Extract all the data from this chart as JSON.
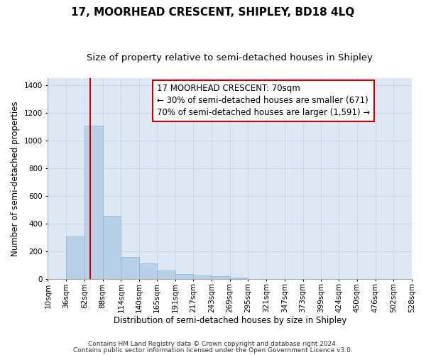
{
  "title": "17, MOORHEAD CRESCENT, SHIPLEY, BD18 4LQ",
  "subtitle": "Size of property relative to semi-detached houses in Shipley",
  "xlabel": "Distribution of semi-detached houses by size in Shipley",
  "ylabel": "Number of semi-detached properties",
  "footnote1": "Contains HM Land Registry data © Crown copyright and database right 2024.",
  "footnote2": "Contains public sector information licensed under the Open Government Licence v3.0.",
  "annotation_line1": "17 MOORHEAD CRESCENT: 70sqm",
  "annotation_line2": "← 30% of semi-detached houses are smaller (671)",
  "annotation_line3": "70% of semi-detached houses are larger (1,591) →",
  "bar_values": [
    0,
    305,
    1105,
    455,
    155,
    110,
    60,
    35,
    25,
    20,
    10,
    0,
    0,
    0,
    0,
    0,
    0,
    0,
    0,
    0
  ],
  "bin_edges": [
    10,
    36,
    62,
    88,
    114,
    140,
    165,
    191,
    217,
    243,
    269,
    295,
    321,
    347,
    373,
    399,
    424,
    450,
    476,
    502,
    528
  ],
  "tick_labels": [
    "10sqm",
    "36sqm",
    "62sqm",
    "88sqm",
    "114sqm",
    "140sqm",
    "165sqm",
    "191sqm",
    "217sqm",
    "243sqm",
    "269sqm",
    "295sqm",
    "321sqm",
    "347sqm",
    "373sqm",
    "399sqm",
    "424sqm",
    "450sqm",
    "476sqm",
    "502sqm",
    "528sqm"
  ],
  "bar_color": "#b8d0e8",
  "bar_edge_color": "#8ab0d0",
  "vline_color": "#cc0000",
  "ylim": [
    0,
    1450
  ],
  "yticks": [
    0,
    200,
    400,
    600,
    800,
    1000,
    1200,
    1400
  ],
  "grid_color": "#c8d8eb",
  "bg_color": "#dde8f4",
  "annotation_box_facecolor": "white",
  "annotation_box_edgecolor": "#cc0000",
  "title_fontsize": 11,
  "subtitle_fontsize": 9.5,
  "axis_label_fontsize": 8.5,
  "tick_fontsize": 7.5,
  "annotation_fontsize": 8.5,
  "footnote_fontsize": 6.5
}
